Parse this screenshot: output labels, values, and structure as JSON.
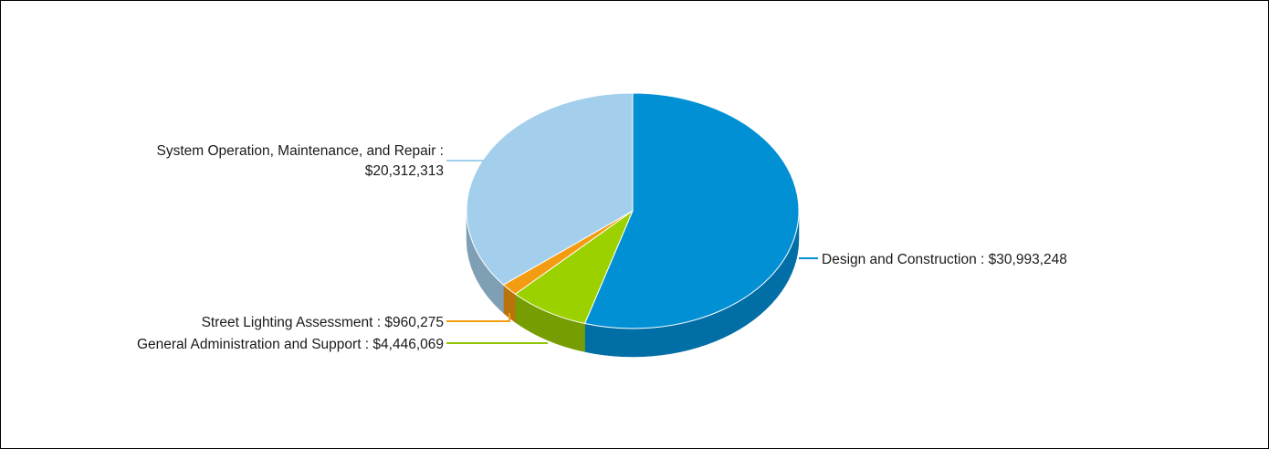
{
  "chart_data": {
    "type": "pie",
    "title": "",
    "label_separator": " : ",
    "slices": [
      {
        "name": "Design and Construction",
        "value": 30993248,
        "value_label": "$30,993,248",
        "color": "#0290d5",
        "side_color": "#016fa6",
        "leader_color": "#0290d5"
      },
      {
        "name": "General Administration and Support",
        "value": 4446069,
        "value_label": "$4,446,069",
        "color": "#9cd100",
        "side_color": "#769d02",
        "leader_color": "#8ec400"
      },
      {
        "name": "Street Lighting Assessment",
        "value": 960275,
        "value_label": "$960,275",
        "color": "#f39c12",
        "side_color": "#b8730b",
        "leader_color": "#f39c12"
      },
      {
        "name": "System Operation, Maintenance, and Repair",
        "value": 20312313,
        "value_label": "$20,312,313",
        "color": "#a3cfec",
        "side_color": "#7f9fb5",
        "leader_color": "#a3cfec"
      }
    ]
  }
}
